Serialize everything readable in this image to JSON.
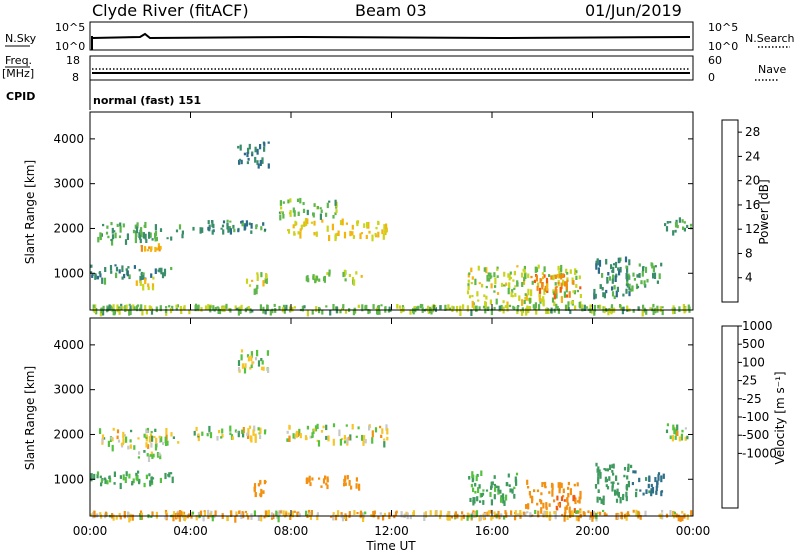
{
  "header": {
    "station": "Clyde River (fitACF)",
    "beam": "Beam 03",
    "date": "01/Jun/2019"
  },
  "panels": {
    "nsky": {
      "left_label": "N.Sky",
      "tick_top": "10^5",
      "tick_bottom": "10^0",
      "right_label": "N.Search",
      "right_tick_top": "10^5",
      "right_tick_bottom": "10^0"
    },
    "freq": {
      "left_label": "Freq.",
      "unit": "[MHz]",
      "tick_top": "18",
      "tick_bottom": "8",
      "right_label": "Nave",
      "right_tick_top": "60",
      "right_tick_bottom": "0"
    },
    "cpid": {
      "label": "CPID",
      "value": "normal (fast) 151"
    }
  },
  "colors": {
    "power_scale": [
      "#0010ff",
      "#1a3fb0",
      "#2b6a8a",
      "#3a8d6a",
      "#5db64a",
      "#c9d51c",
      "#f3b40f",
      "#f08a10",
      "#f25a0b",
      "#e80c0c"
    ],
    "velocity_scale": [
      "#e61414",
      "#f05a10",
      "#f39010",
      "#f5c52a",
      "#c8c8c8",
      "#c8c8c8",
      "#55c23e",
      "#3e9a5e",
      "#2f6f88",
      "#1d3fc0"
    ]
  },
  "chart_data": [
    {
      "type": "heatmap",
      "title": "",
      "xlabel": "Time UT",
      "ylabel": "Slant Range [km]",
      "xticks": [
        "00:00",
        "04:00",
        "08:00",
        "12:00",
        "16:00",
        "20:00",
        "00:00"
      ],
      "yticks": [
        "1000",
        "2000",
        "3000",
        "4000"
      ],
      "xlim_hours": [
        0,
        24
      ],
      "ylim_km": [
        180,
        4600
      ],
      "colorbar": {
        "label": "Power [dB]",
        "ticks": [
          "4",
          "8",
          "12",
          "16",
          "20",
          "24",
          "28"
        ],
        "range": [
          0,
          30
        ]
      },
      "echo_regions": [
        {
          "t": [
            0.2,
            3.8
          ],
          "r": [
            1750,
            2150
          ],
          "v": 12
        },
        {
          "t": [
            1.9,
            2.8
          ],
          "r": [
            1500,
            1680
          ],
          "v": 22
        },
        {
          "t": [
            0.0,
            3.3
          ],
          "r": [
            900,
            1200
          ],
          "v": 10
        },
        {
          "t": [
            1.8,
            2.5
          ],
          "r": [
            700,
            950
          ],
          "v": 18
        },
        {
          "t": [
            5.8,
            7.1
          ],
          "r": [
            3450,
            3950
          ],
          "v": 8
        },
        {
          "t": [
            4.0,
            7.0
          ],
          "r": [
            1950,
            2200
          ],
          "v": 10
        },
        {
          "t": [
            6.2,
            7.1
          ],
          "r": [
            650,
            1050
          ],
          "v": 16
        },
        {
          "t": [
            7.8,
            11.8
          ],
          "r": [
            1850,
            2250
          ],
          "v": 18
        },
        {
          "t": [
            7.5,
            9.8
          ],
          "r": [
            2300,
            2700
          ],
          "v": 14
        },
        {
          "t": [
            8.5,
            9.5
          ],
          "r": [
            850,
            1100
          ],
          "v": 14
        },
        {
          "t": [
            10.0,
            10.8
          ],
          "r": [
            850,
            1100
          ],
          "v": 16
        },
        {
          "t": [
            15.0,
            19.5
          ],
          "r": [
            350,
            1200
          ],
          "v": 16
        },
        {
          "t": [
            17.5,
            19.5
          ],
          "r": [
            500,
            1000
          ],
          "v": 24
        },
        {
          "t": [
            20.0,
            21.5
          ],
          "r": [
            500,
            1400
          ],
          "v": 10
        },
        {
          "t": [
            21.3,
            22.8
          ],
          "r": [
            700,
            1250
          ],
          "v": 12
        },
        {
          "t": [
            22.8,
            24.0
          ],
          "r": [
            1950,
            2250
          ],
          "v": 12
        },
        {
          "t": [
            0.0,
            24.0
          ],
          "r": [
            180,
            320
          ],
          "v": 14
        }
      ]
    },
    {
      "type": "heatmap",
      "title": "",
      "xlabel": "Time UT",
      "ylabel": "Slant Range [km]",
      "xticks": [
        "00:00",
        "04:00",
        "08:00",
        "12:00",
        "16:00",
        "20:00",
        "00:00"
      ],
      "yticks": [
        "1000",
        "2000",
        "3000",
        "4000"
      ],
      "xlim_hours": [
        0,
        24
      ],
      "ylim_km": [
        180,
        4600
      ],
      "colorbar": {
        "label": "Velocity [m s⁻¹]",
        "ticks": [
          "1000",
          "500",
          "100",
          "25",
          "-25",
          "-100",
          "-500",
          "-1000"
        ]
      },
      "echo_regions": [
        {
          "t": [
            0.2,
            3.8
          ],
          "r": [
            1750,
            2150
          ],
          "v": 0
        },
        {
          "t": [
            1.9,
            2.8
          ],
          "r": [
            1500,
            1680
          ],
          "v": 80
        },
        {
          "t": [
            0.0,
            3.3
          ],
          "r": [
            900,
            1200
          ],
          "v": 150
        },
        {
          "t": [
            5.8,
            7.1
          ],
          "r": [
            3450,
            3950
          ],
          "v": 0
        },
        {
          "t": [
            4.0,
            7.0
          ],
          "r": [
            1950,
            2200
          ],
          "v": 0
        },
        {
          "t": [
            6.2,
            7.1
          ],
          "r": [
            650,
            1050
          ],
          "v": -300
        },
        {
          "t": [
            7.8,
            11.8
          ],
          "r": [
            1850,
            2250
          ],
          "v": 0
        },
        {
          "t": [
            8.5,
            9.5
          ],
          "r": [
            850,
            1100
          ],
          "v": -300
        },
        {
          "t": [
            10.0,
            10.8
          ],
          "r": [
            850,
            1100
          ],
          "v": -300
        },
        {
          "t": [
            15.0,
            17.0
          ],
          "r": [
            500,
            1200
          ],
          "v": 150
        },
        {
          "t": [
            17.3,
            19.5
          ],
          "r": [
            350,
            1000
          ],
          "v": -300
        },
        {
          "t": [
            18.5,
            19.3
          ],
          "r": [
            350,
            700
          ],
          "v": -600
        },
        {
          "t": [
            20.0,
            21.5
          ],
          "r": [
            500,
            1400
          ],
          "v": 300
        },
        {
          "t": [
            21.5,
            22.8
          ],
          "r": [
            700,
            1250
          ],
          "v": 600
        },
        {
          "t": [
            22.8,
            24.0
          ],
          "r": [
            1950,
            2250
          ],
          "v": 0
        },
        {
          "t": [
            0.0,
            24.0
          ],
          "r": [
            180,
            320
          ],
          "v": -80
        }
      ]
    }
  ]
}
